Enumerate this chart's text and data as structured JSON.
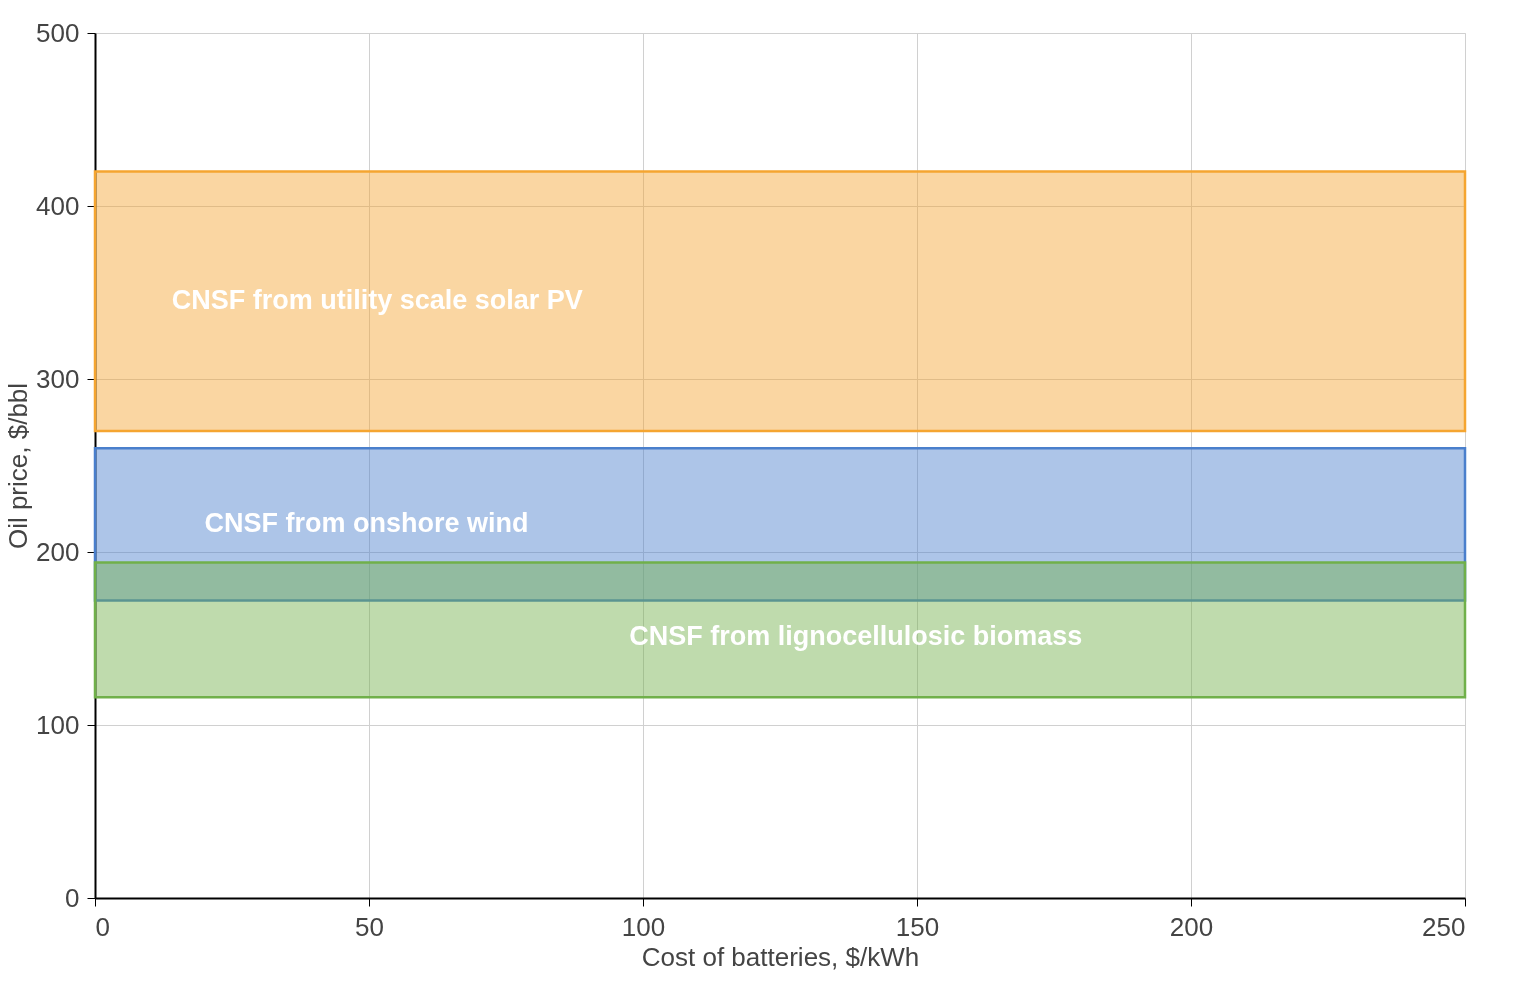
{
  "chart_data": {
    "type": "area",
    "xlabel": "Cost of batteries, $/kWh",
    "ylabel": "Oil price, $/bbl",
    "xlim": [
      0,
      250
    ],
    "xticks": [
      0,
      50,
      100,
      150,
      200,
      250
    ],
    "ylim": [
      0,
      500
    ],
    "yticks": [
      0,
      100,
      200,
      300,
      400,
      500
    ],
    "grid": true,
    "bands": [
      {
        "axis": "y",
        "from": 270,
        "to": 420,
        "color": "#f5a530",
        "label": "CNSF from utility scale solar PV"
      },
      {
        "axis": "y",
        "from": 172,
        "to": 260,
        "color": "#4a7fcc",
        "label": "CNSF from onshore wind"
      },
      {
        "axis": "y",
        "from": 116,
        "to": 194,
        "color": "#70b04a",
        "label": "CNSF from lignocellulosic biomass"
      }
    ]
  }
}
